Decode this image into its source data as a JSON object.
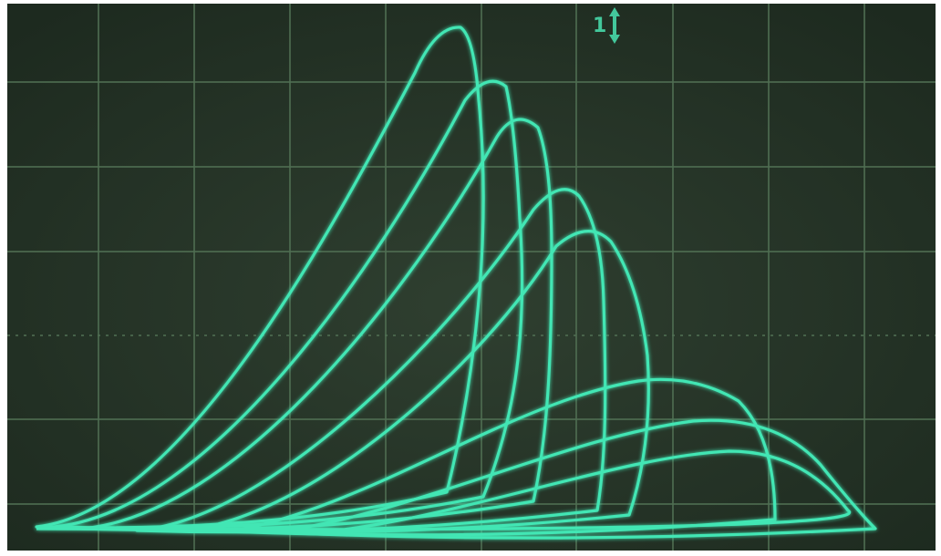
{
  "screen": {
    "channel_marker": "1"
  }
}
